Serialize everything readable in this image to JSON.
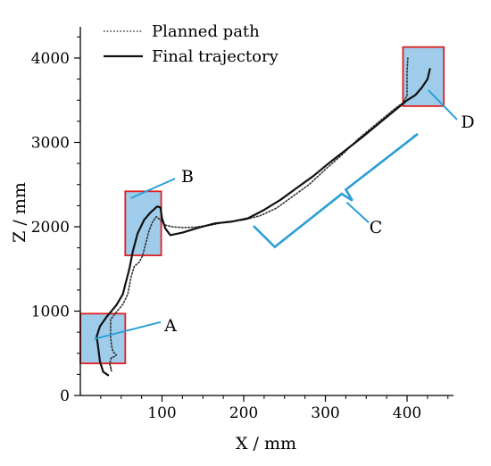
{
  "chart_data": {
    "type": "line",
    "xlabel": "X / mm",
    "ylabel": "Z / mm",
    "x_ticks": [
      "100",
      "200",
      "300",
      "400"
    ],
    "x_tick_values": [
      100,
      200,
      300,
      400
    ],
    "y_ticks": [
      "0",
      "1000",
      "2000",
      "3000",
      "4000"
    ],
    "y_tick_values": [
      0,
      1000,
      2000,
      3000,
      4000
    ],
    "xlim": [
      0,
      450
    ],
    "ylim": [
      0,
      4500
    ],
    "legend": {
      "position": "top-left"
    },
    "series": [
      {
        "name": "Planned path",
        "style": "dotted",
        "color": "#333333",
        "points": [
          [
            37,
            340
          ],
          [
            38,
            290
          ],
          [
            36,
            380
          ],
          [
            38,
            450
          ],
          [
            42,
            460
          ],
          [
            44,
            480
          ],
          [
            40,
            520
          ],
          [
            38,
            600
          ],
          [
            37,
            700
          ],
          [
            37,
            800
          ],
          [
            37,
            900
          ],
          [
            45,
            1000
          ],
          [
            52,
            1080
          ],
          [
            58,
            1200
          ],
          [
            62,
            1400
          ],
          [
            66,
            1530
          ],
          [
            72,
            1580
          ],
          [
            76,
            1650
          ],
          [
            80,
            1800
          ],
          [
            84,
            1950
          ],
          [
            88,
            2050
          ],
          [
            93,
            2120
          ],
          [
            98,
            2080
          ],
          [
            104,
            2020
          ],
          [
            112,
            2000
          ],
          [
            125,
            1990
          ],
          [
            140,
            1995
          ],
          [
            160,
            2020
          ],
          [
            180,
            2060
          ],
          [
            200,
            2080
          ],
          [
            220,
            2130
          ],
          [
            240,
            2220
          ],
          [
            260,
            2360
          ],
          [
            280,
            2500
          ],
          [
            300,
            2680
          ],
          [
            320,
            2850
          ],
          [
            340,
            3040
          ],
          [
            360,
            3200
          ],
          [
            375,
            3320
          ],
          [
            385,
            3400
          ],
          [
            395,
            3470
          ],
          [
            400,
            3550
          ],
          [
            400,
            3700
          ],
          [
            400,
            3850
          ],
          [
            401,
            4000
          ]
        ]
      },
      {
        "name": "Final trajectory",
        "style": "solid",
        "color": "#111111",
        "points": [
          [
            34,
            240
          ],
          [
            28,
            280
          ],
          [
            24,
            400
          ],
          [
            22,
            560
          ],
          [
            20,
            700
          ],
          [
            24,
            820
          ],
          [
            32,
            930
          ],
          [
            44,
            1070
          ],
          [
            52,
            1200
          ],
          [
            56,
            1350
          ],
          [
            60,
            1500
          ],
          [
            64,
            1700
          ],
          [
            70,
            1920
          ],
          [
            78,
            2080
          ],
          [
            86,
            2170
          ],
          [
            94,
            2240
          ],
          [
            98,
            2230
          ],
          [
            100,
            2100
          ],
          [
            104,
            1980
          ],
          [
            110,
            1900
          ],
          [
            125,
            1930
          ],
          [
            145,
            1990
          ],
          [
            165,
            2040
          ],
          [
            185,
            2060
          ],
          [
            205,
            2100
          ],
          [
            225,
            2200
          ],
          [
            245,
            2320
          ],
          [
            265,
            2460
          ],
          [
            285,
            2600
          ],
          [
            305,
            2760
          ],
          [
            325,
            2910
          ],
          [
            345,
            3060
          ],
          [
            365,
            3220
          ],
          [
            385,
            3380
          ],
          [
            400,
            3500
          ],
          [
            410,
            3560
          ],
          [
            418,
            3650
          ],
          [
            425,
            3750
          ],
          [
            428,
            3870
          ]
        ]
      }
    ],
    "annotations": [
      {
        "label": "A",
        "region": {
          "x": [
            0,
            55
          ],
          "y": [
            380,
            970
          ]
        }
      },
      {
        "label": "B",
        "region": {
          "x": [
            55,
            99
          ],
          "y": [
            1660,
            2420
          ]
        }
      },
      {
        "label": "C",
        "region": {
          "x": [
            210,
            410
          ],
          "y": [
            1750,
            3050
          ]
        }
      },
      {
        "label": "D",
        "region": {
          "x": [
            395,
            445
          ],
          "y": [
            3430,
            4130
          ]
        }
      }
    ],
    "grid": false
  }
}
